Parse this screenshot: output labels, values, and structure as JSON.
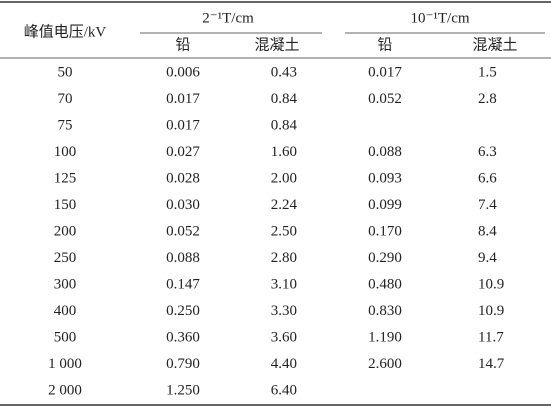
{
  "table": {
    "header": {
      "first": "峰值电压/kV",
      "groups": [
        "2⁻¹T/cm",
        "10⁻¹T/cm"
      ],
      "sub": [
        "铅",
        "混凝土",
        "铅",
        "混凝土"
      ]
    },
    "rows": [
      [
        "50",
        "0.006",
        "0.43",
        "0.017",
        "1.5"
      ],
      [
        "70",
        "0.017",
        "0.84",
        "0.052",
        "2.8"
      ],
      [
        "75",
        "0.017",
        "0.84"
      ],
      [
        "100",
        "0.027",
        "1.60",
        "0.088",
        "6.3"
      ],
      [
        "125",
        "0.028",
        "2.00",
        "0.093",
        "6.6"
      ],
      [
        "150",
        "0.030",
        "2.24",
        "0.099",
        "7.4"
      ],
      [
        "200",
        "0.052",
        "2.50",
        "0.170",
        "8.4"
      ],
      [
        "250",
        "0.088",
        "2.80",
        "0.290",
        "9.4"
      ],
      [
        "300",
        "0.147",
        "3.10",
        "0.480",
        "10.9"
      ],
      [
        "400",
        "0.250",
        "3.30",
        "0.830",
        "10.9"
      ],
      [
        "500",
        "0.360",
        "3.60",
        "1.190",
        "11.7"
      ],
      [
        "1 000",
        "0.790",
        "4.40",
        "2.600",
        "14.7"
      ],
      [
        "2 000",
        "1.250",
        "6.40"
      ]
    ]
  }
}
